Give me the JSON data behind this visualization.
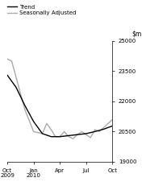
{
  "ylim": [
    19000,
    25000
  ],
  "yticks": [
    19000,
    20500,
    22000,
    23500,
    25000
  ],
  "ytick_labels": [
    "19000",
    "20500",
    "22000",
    "23500",
    "25000"
  ],
  "trend_x": [
    0,
    1,
    2,
    3,
    4,
    5,
    6,
    7,
    8,
    9,
    10,
    11,
    12
  ],
  "trend_y": [
    23300,
    22700,
    21800,
    21000,
    20400,
    20250,
    20250,
    20300,
    20350,
    20400,
    20500,
    20620,
    20780
  ],
  "seasonal_x": [
    0,
    0.5,
    1,
    2,
    3,
    4,
    4.5,
    5,
    5.5,
    6,
    6.5,
    7,
    7.5,
    8,
    8.5,
    9,
    9.5,
    10,
    10.5,
    11,
    12
  ],
  "seasonal_y": [
    24100,
    24000,
    23200,
    21600,
    20500,
    20400,
    20900,
    20600,
    20250,
    20250,
    20500,
    20250,
    20150,
    20350,
    20500,
    20350,
    20200,
    20600,
    20500,
    20700,
    21100
  ],
  "trend_color": "#000000",
  "seasonal_color": "#aaaaaa",
  "trend_linewidth": 1.0,
  "seasonal_linewidth": 1.0,
  "legend_trend": "Trend",
  "legend_seasonal": "Seasonally Adjusted",
  "background_color": "#ffffff",
  "x_positions": [
    0,
    3,
    6,
    9,
    12
  ],
  "x_labels": [
    "Oct\n2009",
    "Jan\n2010",
    "Apr",
    "Jul",
    "Oct"
  ]
}
